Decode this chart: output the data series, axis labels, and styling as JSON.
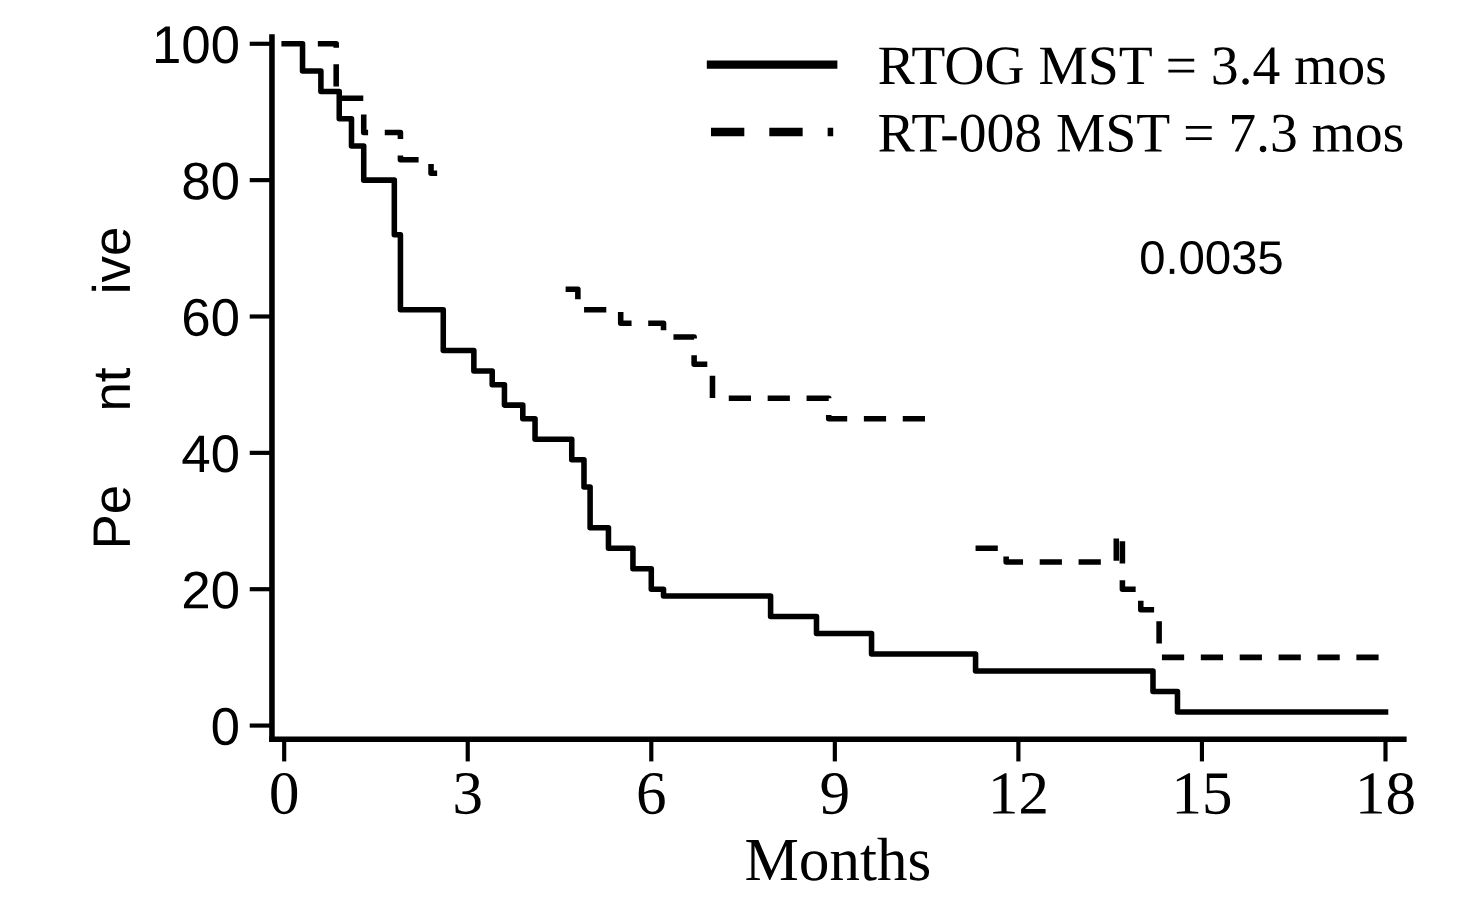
{
  "chart_data": {
    "type": "step",
    "xlabel": "Months",
    "ylabel": "Pe     nt     ive",
    "xlim": [
      -0.2,
      18.3
    ],
    "ylim": [
      -2,
      101
    ],
    "xticks": [
      0,
      3,
      6,
      9,
      12,
      15,
      18
    ],
    "yticks": [
      0,
      20,
      40,
      60,
      80,
      100
    ],
    "grid": false,
    "legend": "top right",
    "marker": "none",
    "series": [
      {
        "name": "RTOG MST = 3.4 mos",
        "color": "#000000",
        "line_style": "solid",
        "x": [
          0,
          0.3,
          0.6,
          0.9,
          1.1,
          1.3,
          1.8,
          1.9,
          2.6,
          3.1,
          3.4,
          3.6,
          3.9,
          4.1,
          4.7,
          4.9,
          5.0,
          5.3,
          5.7,
          6.0,
          6.2,
          7.95,
          8.7,
          9.6,
          11.3,
          14.2,
          14.6,
          18
        ],
        "values": [
          100,
          96,
          93,
          89,
          85,
          80,
          72,
          61,
          55,
          52,
          50,
          47,
          45,
          42,
          39,
          35,
          29,
          26,
          23,
          20,
          19,
          16,
          13.5,
          10.5,
          8,
          5,
          2,
          2
        ]
      },
      {
        "name": "RT-008 MST = 7.3 mos",
        "color": "#000000",
        "line_style": "dashed",
        "x": [
          0.55,
          0.85,
          1.3,
          1.9,
          2.4,
          2.5,
          4.6,
          4.8,
          5.5,
          6.2,
          6.7,
          7.0,
          8.9,
          10.5,
          10.6,
          11.3,
          11.8,
          13.4,
          13.6,
          13.7,
          14.0,
          14.3,
          18
        ],
        "values": [
          100,
          92,
          87,
          83,
          81,
          null,
          64,
          61,
          59,
          57,
          53,
          48,
          45,
          45,
          null,
          26,
          24,
          24,
          28,
          20,
          17,
          10,
          10
        ]
      }
    ],
    "annotations": [
      "0.0035"
    ]
  }
}
